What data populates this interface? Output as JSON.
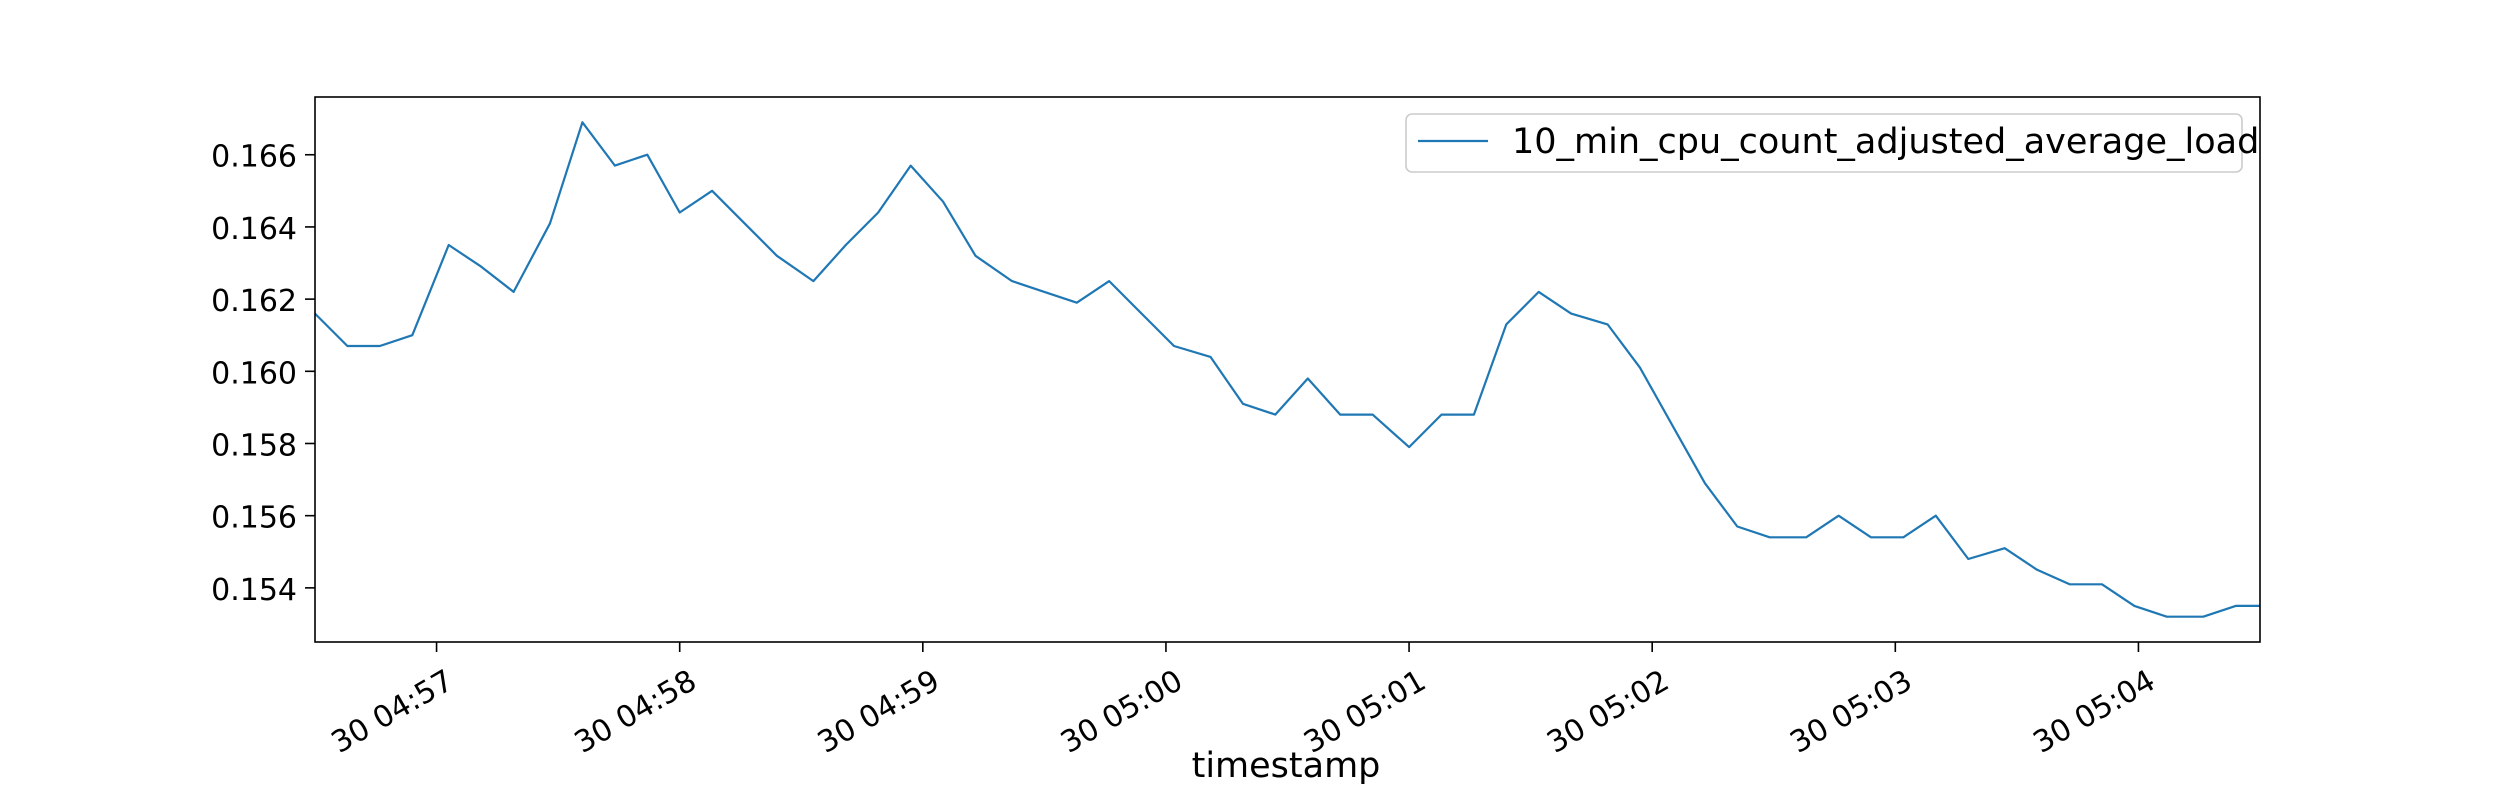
{
  "chart_data": {
    "type": "line",
    "title": "",
    "xlabel": "timestamp",
    "ylabel": "",
    "x_ticks": [
      "30 04:57",
      "30 04:58",
      "30 04:59",
      "30 05:00",
      "30 05:01",
      "30 05:02",
      "30 05:03",
      "30 05:04"
    ],
    "x_tick_times": [
      "04:57:00",
      "04:58:00",
      "04:59:00",
      "05:00:00",
      "05:01:00",
      "05:02:00",
      "05:03:00",
      "05:04:00"
    ],
    "xlim": [
      "04:56:30",
      "04:04:30"
    ],
    "y_ticks": [
      "0.154",
      "0.156",
      "0.158",
      "0.160",
      "0.162",
      "0.164",
      "0.166"
    ],
    "ylim": [
      0.1525,
      0.1676
    ],
    "grid": false,
    "legend_position": "top-right",
    "line_color": "#1f77b4",
    "series": [
      {
        "name": "10_min_cpu_count_adjusted_average_load",
        "x": [
          "04:56:30",
          "04:56:38",
          "04:56:46",
          "04:56:54",
          "04:57:03",
          "04:57:11",
          "04:57:19",
          "04:57:28",
          "04:57:36",
          "04:57:44",
          "04:57:52",
          "04:58:00",
          "04:58:08",
          "04:58:16",
          "04:58:24",
          "04:58:33",
          "04:58:41",
          "04:58:49",
          "04:58:57",
          "04:59:05",
          "04:59:13",
          "04:59:22",
          "04:59:30",
          "04:59:38",
          "04:59:46",
          "04:59:54",
          "05:00:02",
          "05:00:11",
          "05:00:19",
          "05:00:27",
          "05:00:35",
          "05:00:43",
          "05:00:51",
          "05:01:00",
          "05:01:08",
          "05:01:16",
          "05:01:24",
          "05:01:32",
          "05:01:40",
          "05:01:49",
          "05:01:57",
          "05:02:05",
          "05:02:13",
          "05:02:21",
          "05:02:29",
          "05:02:38",
          "05:02:46",
          "05:02:54",
          "05:03:02",
          "05:03:10",
          "05:03:18",
          "05:03:27",
          "05:03:35",
          "05:03:43",
          "05:03:51",
          "05:03:59",
          "05:04:07",
          "05:04:16",
          "05:04:24",
          "05:04:30"
        ],
        "values": [
          0.1616,
          0.1607,
          0.1607,
          0.161,
          0.1635,
          0.1629,
          0.1622,
          0.1641,
          0.1669,
          0.1657,
          0.166,
          0.1644,
          0.165,
          0.1641,
          0.1632,
          0.1625,
          0.1635,
          0.1644,
          0.1657,
          0.1647,
          0.1632,
          0.1625,
          0.1622,
          0.1619,
          0.1625,
          0.1616,
          0.1607,
          0.1604,
          0.1591,
          0.1588,
          0.1598,
          0.1588,
          0.1588,
          0.1579,
          0.1588,
          0.1588,
          0.1613,
          0.1622,
          0.1616,
          0.1613,
          0.1601,
          0.1585,
          0.1569,
          0.1557,
          0.1554,
          0.1554,
          0.156,
          0.1554,
          0.1554,
          0.156,
          0.1548,
          0.1551,
          0.1545,
          0.1541,
          0.1541,
          0.1535,
          0.1532,
          0.1532,
          0.1535,
          0.1535
        ]
      }
    ]
  }
}
